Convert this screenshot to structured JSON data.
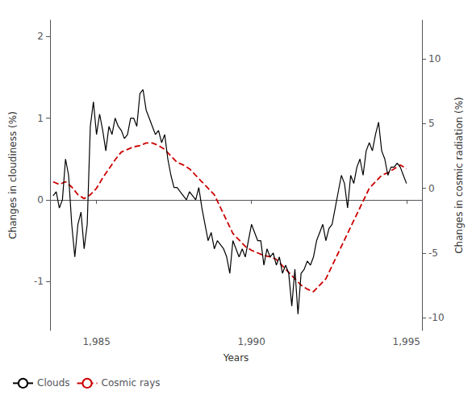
{
  "chart_data": {
    "type": "line",
    "xlabel": "Years",
    "ylabel": "Changes in cloudiness (%)",
    "y2label": "Changes in cosmic radiation (%)",
    "xlim": [
      1983.5,
      1995.5
    ],
    "xticks": [
      1985,
      1990,
      1995
    ],
    "ylim": [
      -1.6,
      2.2
    ],
    "yticks": [
      -1,
      0,
      1,
      2
    ],
    "y2lim": [
      -11,
      13
    ],
    "y2ticks": [
      -10,
      -5,
      0,
      5,
      10
    ],
    "grid": false,
    "legend": "lower left",
    "series": [
      {
        "name": "Clouds",
        "color": "#000000",
        "line_style": "solid",
        "axis": "y",
        "x": [
          1983.6,
          1983.7,
          1983.8,
          1983.9,
          1984.0,
          1984.1,
          1984.2,
          1984.3,
          1984.4,
          1984.5,
          1984.6,
          1984.7,
          1984.8,
          1984.9,
          1985.0,
          1985.1,
          1985.2,
          1985.3,
          1985.4,
          1985.5,
          1985.6,
          1985.7,
          1985.8,
          1985.9,
          1986.0,
          1986.1,
          1986.2,
          1986.3,
          1986.4,
          1986.5,
          1986.6,
          1986.7,
          1986.8,
          1986.9,
          1987.0,
          1987.1,
          1987.2,
          1987.3,
          1987.4,
          1987.5,
          1987.6,
          1987.7,
          1987.8,
          1987.9,
          1988.0,
          1988.1,
          1988.2,
          1988.3,
          1988.4,
          1988.5,
          1988.6,
          1988.7,
          1988.8,
          1988.9,
          1989.0,
          1989.1,
          1989.2,
          1989.3,
          1989.4,
          1989.5,
          1989.6,
          1989.7,
          1989.8,
          1989.9,
          1990.0,
          1990.1,
          1990.2,
          1990.3,
          1990.4,
          1990.5,
          1990.6,
          1990.7,
          1990.8,
          1990.9,
          1991.0,
          1991.1,
          1991.2,
          1991.3,
          1991.4,
          1991.5,
          1991.6,
          1991.7,
          1991.8,
          1991.9,
          1992.0,
          1992.1,
          1992.2,
          1992.3,
          1992.4,
          1992.5,
          1992.6,
          1992.7,
          1992.8,
          1992.9,
          1993.0,
          1993.1,
          1993.2,
          1993.3,
          1993.4,
          1993.5,
          1993.6,
          1993.7,
          1993.8,
          1993.9,
          1994.0,
          1994.1,
          1994.2,
          1994.3,
          1994.4,
          1994.5,
          1994.6,
          1994.7,
          1994.8,
          1994.9,
          1995.0
        ],
        "values": [
          0.05,
          0.1,
          -0.1,
          0.0,
          0.5,
          0.3,
          -0.3,
          -0.7,
          -0.3,
          -0.15,
          -0.6,
          -0.3,
          0.9,
          1.2,
          0.8,
          1.05,
          0.85,
          0.6,
          0.9,
          0.8,
          1.0,
          0.9,
          0.85,
          0.75,
          0.8,
          1.0,
          1.0,
          0.9,
          1.3,
          1.35,
          1.1,
          1.0,
          0.9,
          0.8,
          0.85,
          0.7,
          0.8,
          0.5,
          0.3,
          0.15,
          0.15,
          0.1,
          0.05,
          0.0,
          0.1,
          0.05,
          0.0,
          0.15,
          -0.1,
          -0.3,
          -0.5,
          -0.4,
          -0.6,
          -0.5,
          -0.55,
          -0.6,
          -0.7,
          -0.9,
          -0.5,
          -0.6,
          -0.7,
          -0.6,
          -0.7,
          -0.5,
          -0.3,
          -0.4,
          -0.5,
          -0.5,
          -0.8,
          -0.6,
          -0.7,
          -0.65,
          -0.8,
          -0.7,
          -0.9,
          -0.8,
          -0.9,
          -1.3,
          -0.85,
          -1.4,
          -0.9,
          -0.85,
          -0.75,
          -0.8,
          -0.7,
          -0.5,
          -0.4,
          -0.3,
          -0.5,
          -0.35,
          -0.3,
          -0.1,
          0.1,
          0.3,
          0.2,
          -0.1,
          0.3,
          0.2,
          0.4,
          0.5,
          0.3,
          0.6,
          0.7,
          0.6,
          0.8,
          0.95,
          0.6,
          0.5,
          0.3,
          0.4,
          0.4,
          0.45,
          0.4,
          0.3,
          0.2
        ]
      },
      {
        "name": "Cosmic rays",
        "color": "#cc0000",
        "line_style": "dashed",
        "axis": "y2",
        "x": [
          1983.6,
          1983.8,
          1984.0,
          1984.2,
          1984.4,
          1984.6,
          1984.8,
          1985.0,
          1985.2,
          1985.4,
          1985.6,
          1985.8,
          1986.0,
          1986.2,
          1986.4,
          1986.6,
          1986.8,
          1987.0,
          1987.2,
          1987.4,
          1987.6,
          1987.8,
          1988.0,
          1988.2,
          1988.4,
          1988.6,
          1988.8,
          1989.0,
          1989.2,
          1989.4,
          1989.6,
          1989.8,
          1990.0,
          1990.2,
          1990.4,
          1990.6,
          1990.8,
          1991.0,
          1991.2,
          1991.4,
          1991.6,
          1991.8,
          1992.0,
          1992.2,
          1992.4,
          1992.6,
          1992.8,
          1993.0,
          1993.2,
          1993.4,
          1993.6,
          1993.8,
          1994.0,
          1994.2,
          1994.4,
          1994.6,
          1994.8,
          1995.0
        ],
        "values": [
          0.5,
          0.3,
          0.5,
          0.1,
          -0.5,
          -0.8,
          -0.5,
          0.0,
          0.8,
          1.5,
          2.2,
          2.8,
          3.0,
          3.2,
          3.3,
          3.5,
          3.5,
          3.3,
          3.0,
          2.5,
          2.0,
          1.8,
          1.5,
          1.0,
          0.5,
          0.0,
          -0.5,
          -1.5,
          -2.5,
          -3.5,
          -4.0,
          -4.5,
          -4.8,
          -5.0,
          -5.2,
          -5.3,
          -5.5,
          -6.0,
          -6.5,
          -7.0,
          -7.5,
          -7.8,
          -8.0,
          -7.5,
          -7.0,
          -6.0,
          -5.0,
          -4.0,
          -3.0,
          -2.0,
          -1.0,
          0.0,
          0.5,
          1.0,
          1.2,
          1.5,
          1.8,
          1.5
        ]
      }
    ]
  }
}
